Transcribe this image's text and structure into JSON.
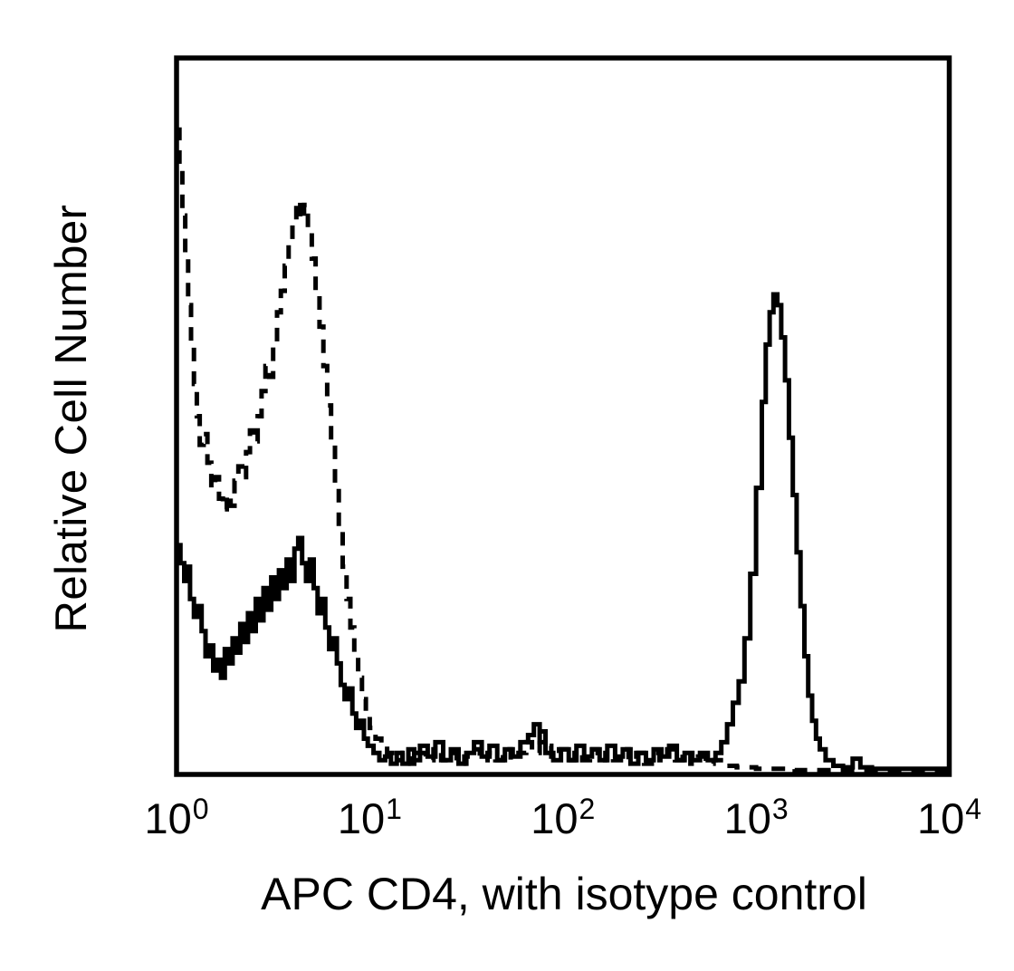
{
  "figure": {
    "background_color": "#ffffff",
    "line_color": "#000000"
  },
  "chart_data": {
    "type": "line",
    "style": "stepped-histogram-outline",
    "title": "",
    "xlabel": "APC CD4, with isotype control",
    "ylabel": "Relative Cell Number",
    "x_scale": "log10",
    "xlim": [
      1,
      10000
    ],
    "ylim": [
      0,
      1
    ],
    "grid": false,
    "legend": "none",
    "x_ticks": [
      {
        "base": "10",
        "exp": "0",
        "log": 0
      },
      {
        "base": "10",
        "exp": "1",
        "log": 1
      },
      {
        "base": "10",
        "exp": "2",
        "log": 2
      },
      {
        "base": "10",
        "exp": "3",
        "log": 3
      },
      {
        "base": "10",
        "exp": "4",
        "log": 4
      }
    ],
    "series": [
      {
        "name": "isotype control",
        "line_style": "dashed",
        "color": "#000000",
        "points": [
          [
            0.0,
            0.9
          ],
          [
            0.015,
            0.845
          ],
          [
            0.03,
            0.78
          ],
          [
            0.045,
            0.72
          ],
          [
            0.06,
            0.655
          ],
          [
            0.075,
            0.6
          ],
          [
            0.09,
            0.545
          ],
          [
            0.105,
            0.5
          ],
          [
            0.12,
            0.46
          ],
          [
            0.14,
            0.475
          ],
          [
            0.16,
            0.435
          ],
          [
            0.18,
            0.4
          ],
          [
            0.2,
            0.415
          ],
          [
            0.22,
            0.385
          ],
          [
            0.24,
            0.37
          ],
          [
            0.26,
            0.39
          ],
          [
            0.28,
            0.375
          ],
          [
            0.3,
            0.41
          ],
          [
            0.32,
            0.43
          ],
          [
            0.34,
            0.415
          ],
          [
            0.36,
            0.45
          ],
          [
            0.38,
            0.48
          ],
          [
            0.4,
            0.465
          ],
          [
            0.42,
            0.5
          ],
          [
            0.44,
            0.535
          ],
          [
            0.46,
            0.57
          ],
          [
            0.48,
            0.555
          ],
          [
            0.5,
            0.6
          ],
          [
            0.52,
            0.645
          ],
          [
            0.54,
            0.675
          ],
          [
            0.56,
            0.71
          ],
          [
            0.58,
            0.745
          ],
          [
            0.6,
            0.77
          ],
          [
            0.62,
            0.8
          ],
          [
            0.64,
            0.775
          ],
          [
            0.66,
            0.795
          ],
          [
            0.68,
            0.76
          ],
          [
            0.7,
            0.72
          ],
          [
            0.72,
            0.675
          ],
          [
            0.74,
            0.625
          ],
          [
            0.76,
            0.57
          ],
          [
            0.78,
            0.515
          ],
          [
            0.8,
            0.46
          ],
          [
            0.82,
            0.4
          ],
          [
            0.84,
            0.345
          ],
          [
            0.86,
            0.29
          ],
          [
            0.88,
            0.245
          ],
          [
            0.9,
            0.205
          ],
          [
            0.92,
            0.17
          ],
          [
            0.94,
            0.135
          ],
          [
            0.96,
            0.105
          ],
          [
            0.98,
            0.085
          ],
          [
            1.0,
            0.065
          ],
          [
            1.03,
            0.05
          ],
          [
            1.06,
            0.04
          ],
          [
            1.09,
            0.03
          ],
          [
            1.13,
            0.02
          ],
          [
            1.17,
            0.03
          ],
          [
            1.21,
            0.015
          ],
          [
            1.25,
            0.03
          ],
          [
            1.29,
            0.02
          ],
          [
            1.33,
            0.035
          ],
          [
            1.37,
            0.02
          ],
          [
            1.41,
            0.03
          ],
          [
            1.45,
            0.015
          ],
          [
            1.49,
            0.025
          ],
          [
            1.53,
            0.035
          ],
          [
            1.57,
            0.02
          ],
          [
            1.61,
            0.03
          ],
          [
            1.65,
            0.02
          ],
          [
            1.69,
            0.035
          ],
          [
            1.73,
            0.02
          ],
          [
            1.77,
            0.03
          ],
          [
            1.81,
            0.045
          ],
          [
            1.84,
            0.03
          ],
          [
            1.88,
            0.06
          ],
          [
            1.91,
            0.04
          ],
          [
            1.94,
            0.025
          ],
          [
            1.98,
            0.035
          ],
          [
            2.02,
            0.02
          ],
          [
            2.06,
            0.03
          ],
          [
            2.1,
            0.02
          ],
          [
            2.14,
            0.035
          ],
          [
            2.18,
            0.02
          ],
          [
            2.22,
            0.03
          ],
          [
            2.26,
            0.02
          ],
          [
            2.3,
            0.035
          ],
          [
            2.34,
            0.02
          ],
          [
            2.38,
            0.03
          ],
          [
            2.42,
            0.015
          ],
          [
            2.46,
            0.03
          ],
          [
            2.5,
            0.02
          ],
          [
            2.54,
            0.035
          ],
          [
            2.58,
            0.02
          ],
          [
            2.62,
            0.03
          ],
          [
            2.66,
            0.015
          ],
          [
            2.7,
            0.025
          ],
          [
            2.74,
            0.015
          ],
          [
            2.78,
            0.02
          ],
          [
            2.84,
            0.012
          ],
          [
            2.9,
            0.01
          ],
          [
            3.0,
            0.008
          ],
          [
            3.2,
            0.006
          ],
          [
            4.0,
            0.006
          ]
        ]
      },
      {
        "name": "APC CD4",
        "line_style": "solid",
        "color": "#000000",
        "points": [
          [
            0.0,
            0.32
          ],
          [
            0.02,
            0.295
          ],
          [
            0.04,
            0.27
          ],
          [
            0.05,
            0.29
          ],
          [
            0.07,
            0.245
          ],
          [
            0.09,
            0.22
          ],
          [
            0.11,
            0.235
          ],
          [
            0.13,
            0.2
          ],
          [
            0.15,
            0.165
          ],
          [
            0.17,
            0.18
          ],
          [
            0.19,
            0.145
          ],
          [
            0.21,
            0.16
          ],
          [
            0.23,
            0.135
          ],
          [
            0.25,
            0.175
          ],
          [
            0.27,
            0.155
          ],
          [
            0.29,
            0.19
          ],
          [
            0.31,
            0.17
          ],
          [
            0.33,
            0.21
          ],
          [
            0.35,
            0.185
          ],
          [
            0.37,
            0.225
          ],
          [
            0.39,
            0.2
          ],
          [
            0.41,
            0.245
          ],
          [
            0.43,
            0.215
          ],
          [
            0.45,
            0.26
          ],
          [
            0.47,
            0.23
          ],
          [
            0.49,
            0.275
          ],
          [
            0.51,
            0.245
          ],
          [
            0.53,
            0.285
          ],
          [
            0.55,
            0.26
          ],
          [
            0.57,
            0.3
          ],
          [
            0.59,
            0.27
          ],
          [
            0.61,
            0.315
          ],
          [
            0.63,
            0.33
          ],
          [
            0.65,
            0.295
          ],
          [
            0.67,
            0.27
          ],
          [
            0.69,
            0.3
          ],
          [
            0.71,
            0.26
          ],
          [
            0.73,
            0.225
          ],
          [
            0.75,
            0.245
          ],
          [
            0.77,
            0.205
          ],
          [
            0.79,
            0.175
          ],
          [
            0.81,
            0.19
          ],
          [
            0.83,
            0.155
          ],
          [
            0.85,
            0.125
          ],
          [
            0.87,
            0.105
          ],
          [
            0.89,
            0.12
          ],
          [
            0.91,
            0.085
          ],
          [
            0.93,
            0.065
          ],
          [
            0.95,
            0.075
          ],
          [
            0.97,
            0.05
          ],
          [
            0.99,
            0.04
          ],
          [
            1.02,
            0.03
          ],
          [
            1.05,
            0.02
          ],
          [
            1.08,
            0.025
          ],
          [
            1.11,
            0.015
          ],
          [
            1.14,
            0.03
          ],
          [
            1.17,
            0.015
          ],
          [
            1.2,
            0.035
          ],
          [
            1.23,
            0.02
          ],
          [
            1.26,
            0.04
          ],
          [
            1.3,
            0.025
          ],
          [
            1.34,
            0.045
          ],
          [
            1.38,
            0.02
          ],
          [
            1.42,
            0.035
          ],
          [
            1.46,
            0.015
          ],
          [
            1.5,
            0.03
          ],
          [
            1.54,
            0.045
          ],
          [
            1.58,
            0.025
          ],
          [
            1.62,
            0.04
          ],
          [
            1.66,
            0.02
          ],
          [
            1.7,
            0.035
          ],
          [
            1.74,
            0.025
          ],
          [
            1.78,
            0.045
          ],
          [
            1.82,
            0.055
          ],
          [
            1.85,
            0.07
          ],
          [
            1.88,
            0.045
          ],
          [
            1.91,
            0.03
          ],
          [
            1.95,
            0.02
          ],
          [
            1.99,
            0.035
          ],
          [
            2.03,
            0.02
          ],
          [
            2.07,
            0.04
          ],
          [
            2.11,
            0.025
          ],
          [
            2.15,
            0.035
          ],
          [
            2.19,
            0.02
          ],
          [
            2.23,
            0.04
          ],
          [
            2.27,
            0.025
          ],
          [
            2.31,
            0.035
          ],
          [
            2.35,
            0.015
          ],
          [
            2.39,
            0.03
          ],
          [
            2.43,
            0.02
          ],
          [
            2.47,
            0.035
          ],
          [
            2.51,
            0.025
          ],
          [
            2.55,
            0.04
          ],
          [
            2.59,
            0.02
          ],
          [
            2.63,
            0.03
          ],
          [
            2.67,
            0.02
          ],
          [
            2.71,
            0.03
          ],
          [
            2.75,
            0.02
          ],
          [
            2.79,
            0.03
          ],
          [
            2.82,
            0.045
          ],
          [
            2.85,
            0.07
          ],
          [
            2.88,
            0.1
          ],
          [
            2.91,
            0.13
          ],
          [
            2.94,
            0.19
          ],
          [
            2.97,
            0.28
          ],
          [
            3.0,
            0.4
          ],
          [
            3.03,
            0.52
          ],
          [
            3.05,
            0.6
          ],
          [
            3.07,
            0.645
          ],
          [
            3.09,
            0.67
          ],
          [
            3.11,
            0.655
          ],
          [
            3.13,
            0.61
          ],
          [
            3.15,
            0.55
          ],
          [
            3.17,
            0.47
          ],
          [
            3.19,
            0.39
          ],
          [
            3.21,
            0.31
          ],
          [
            3.23,
            0.235
          ],
          [
            3.25,
            0.165
          ],
          [
            3.27,
            0.11
          ],
          [
            3.29,
            0.075
          ],
          [
            3.31,
            0.05
          ],
          [
            3.33,
            0.035
          ],
          [
            3.36,
            0.02
          ],
          [
            3.4,
            0.012
          ],
          [
            3.45,
            0.01
          ],
          [
            3.5,
            0.022
          ],
          [
            3.54,
            0.01
          ],
          [
            3.6,
            0.008
          ],
          [
            3.8,
            0.008
          ],
          [
            4.0,
            0.008
          ]
        ]
      }
    ]
  }
}
